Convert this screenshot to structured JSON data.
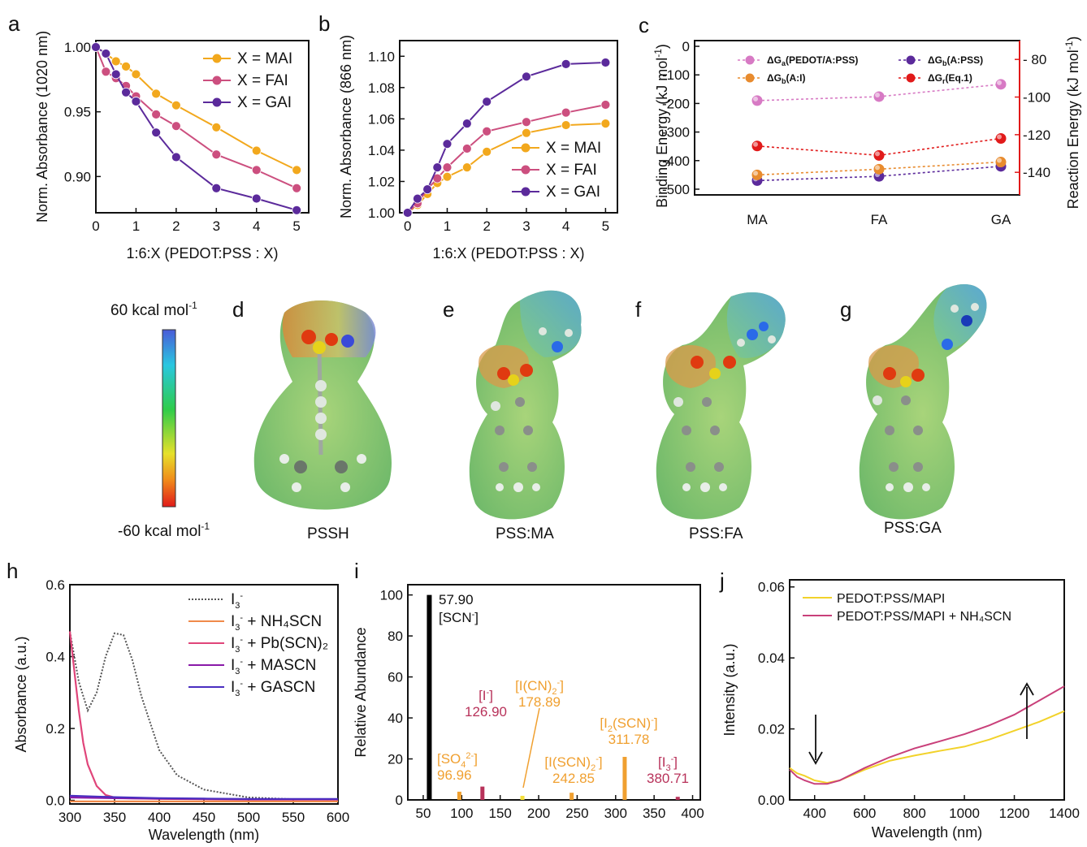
{
  "colors": {
    "mai": "#f2a81d",
    "fai": "#cc4f7f",
    "gai": "#5b2a9b",
    "red": "#e11a1a",
    "orange": "#f0a030",
    "crimson": "#b8325a"
  },
  "panels": {
    "a": "a",
    "b": "b",
    "c": "c",
    "d": "d",
    "e": "e",
    "f": "f",
    "g": "g",
    "h": "h",
    "i": "i",
    "j": "j"
  },
  "colorbar": {
    "top": "60 kcal mol",
    "bottom": "-60 kcal mol",
    "sup": "-1"
  },
  "molecules": [
    "PSSH",
    "PSS:MA",
    "PSS:FA",
    "PSS:GA"
  ],
  "chart_data": [
    {
      "id": "a",
      "type": "line",
      "xlabel": "1:6:X (PEDOT:PSS : X)",
      "ylabel": "Norm. Absorbance (1020 nm)",
      "xlim": [
        0,
        5.3
      ],
      "ylim": [
        0.872,
        1.005
      ],
      "xticks": [
        0,
        1,
        2,
        3,
        4,
        5
      ],
      "xticklabels": [
        "0",
        "1",
        "2",
        "3",
        "4",
        "5"
      ],
      "yticks": [
        0.9,
        0.95,
        1.0
      ],
      "yticklabels": [
        "0.90",
        "0.95",
        "1.00"
      ],
      "legend_position": "top-right",
      "series": [
        {
          "name": "X = MAI",
          "color": "#f2a81d",
          "x": [
            0,
            0.25,
            0.5,
            0.75,
            1,
            1.5,
            2,
            3,
            4,
            5
          ],
          "y": [
            1.0,
            0.995,
            0.989,
            0.985,
            0.979,
            0.964,
            0.955,
            0.938,
            0.92,
            0.905
          ]
        },
        {
          "name": "X = FAI",
          "color": "#cc4f7f",
          "x": [
            0,
            0.25,
            0.5,
            0.75,
            1,
            1.5,
            2,
            3,
            4,
            5
          ],
          "y": [
            1.0,
            0.981,
            0.976,
            0.97,
            0.962,
            0.948,
            0.939,
            0.917,
            0.905,
            0.891
          ]
        },
        {
          "name": "X = GAI",
          "color": "#5b2a9b",
          "x": [
            0,
            0.25,
            0.5,
            0.75,
            1,
            1.5,
            2,
            3,
            4,
            5
          ],
          "y": [
            1.0,
            0.995,
            0.979,
            0.965,
            0.958,
            0.934,
            0.915,
            0.891,
            0.883,
            0.874
          ]
        }
      ]
    },
    {
      "id": "b",
      "type": "line",
      "xlabel": "1:6:X (PEDOT:PSS : X)",
      "ylabel": "Norm. Absorbance (866 nm)",
      "xlim": [
        -0.2,
        5.3
      ],
      "ylim": [
        1.0,
        1.11
      ],
      "xticks": [
        0,
        1,
        2,
        3,
        4,
        5
      ],
      "xticklabels": [
        "0",
        "1",
        "2",
        "3",
        "4",
        "5"
      ],
      "yticks": [
        1.0,
        1.02,
        1.04,
        1.06,
        1.08,
        1.1
      ],
      "yticklabels": [
        "1.00",
        "1.02",
        "1.04",
        "1.06",
        "1.08",
        "1.10"
      ],
      "legend_position": "bottom-right",
      "series": [
        {
          "name": "X = MAI",
          "color": "#f2a81d",
          "x": [
            0,
            0.25,
            0.5,
            0.75,
            1,
            1.5,
            2,
            3,
            4,
            5
          ],
          "y": [
            1.0,
            1.005,
            1.012,
            1.019,
            1.023,
            1.029,
            1.039,
            1.051,
            1.056,
            1.057
          ]
        },
        {
          "name": "X = FAI",
          "color": "#cc4f7f",
          "x": [
            0,
            0.25,
            0.5,
            0.75,
            1,
            1.5,
            2,
            3,
            4,
            5
          ],
          "y": [
            1.0,
            1.006,
            1.015,
            1.022,
            1.029,
            1.041,
            1.052,
            1.058,
            1.064,
            1.069
          ]
        },
        {
          "name": "X = GAI",
          "color": "#5b2a9b",
          "x": [
            0,
            0.25,
            0.5,
            0.75,
            1,
            1.5,
            2,
            3,
            4,
            5
          ],
          "y": [
            1.0,
            1.009,
            1.015,
            1.029,
            1.044,
            1.057,
            1.071,
            1.087,
            1.095,
            1.096
          ]
        }
      ]
    },
    {
      "id": "c",
      "type": "scatter",
      "categories": [
        "MA",
        "FA",
        "GA"
      ],
      "ylabel": "Binding Energy (kJ mol",
      "ylabel_sup": "-1",
      "ylabel_end": ")",
      "y2label": "Reaction Energy (kJ mol",
      "y2label_sup": "-1",
      "y2label_end": ")",
      "ylim": [
        -520,
        20
      ],
      "y2lim": [
        -152,
        -70
      ],
      "yticks": [
        0,
        -100,
        -200,
        -300,
        -400,
        -500
      ],
      "yticklabels": [
        "0",
        "-100",
        "-200",
        "-300",
        "-400",
        "-500"
      ],
      "y2ticks": [
        -80,
        -100,
        -120,
        -140
      ],
      "y2ticklabels": [
        "- 80",
        "-100",
        "-120",
        "-140"
      ],
      "legend_position": "top",
      "series": [
        {
          "name": "ΔG",
          "sub": "a",
          "tail": "(PEDOT/A:PSS)",
          "color": "#d77ac4",
          "axis": "left",
          "values": [
            -190,
            -176,
            -133
          ]
        },
        {
          "name": "ΔG",
          "sub": "b",
          "tail": "(A:PSS)",
          "color": "#5b2a9b",
          "axis": "left",
          "values": [
            -470,
            -455,
            -420
          ]
        },
        {
          "name": "ΔG",
          "sub": "b",
          "tail": "(A:I)",
          "color": "#e88b2e",
          "axis": "left",
          "values": [
            -450,
            -430,
            -405
          ]
        },
        {
          "name": "ΔG",
          "sub": "r",
          "tail": "(Eq.1)",
          "color": "#e11a1a",
          "axis": "right",
          "values": [
            -126,
            -131,
            -122
          ]
        }
      ]
    },
    {
      "id": "h",
      "type": "line",
      "xlabel": "Wavelength (nm)",
      "ylabel": "Absorbance (a.u.)",
      "xlim": [
        300,
        600
      ],
      "ylim": [
        -0.01,
        0.6
      ],
      "xticks": [
        300,
        350,
        400,
        450,
        500,
        550,
        600
      ],
      "xticklabels": [
        "300",
        "350",
        "400",
        "450",
        "500",
        "550",
        "600"
      ],
      "yticks": [
        0.0,
        0.2,
        0.4,
        0.6
      ],
      "yticklabels": [
        "0.0",
        "0.2",
        "0.4",
        "0.6"
      ],
      "legend_position": "top-right",
      "series": [
        {
          "name": "I3- ",
          "legend": [
            "I",
            "3",
            "-",
            ""
          ],
          "color": "#555555",
          "dash": true,
          "x": [
            300,
            310,
            320,
            330,
            340,
            350,
            360,
            370,
            380,
            400,
            420,
            450,
            500,
            550,
            600
          ],
          "y": [
            0.47,
            0.33,
            0.25,
            0.3,
            0.4,
            0.465,
            0.46,
            0.39,
            0.29,
            0.14,
            0.07,
            0.03,
            0.008,
            0.003,
            0.002
          ]
        },
        {
          "name": "I3- + NH4SCN",
          "legend": [
            "I",
            "3",
            "-",
            " + NH₄SCN"
          ],
          "color": "#f08a4a",
          "x": [
            300,
            350,
            400,
            450,
            500,
            550,
            600
          ],
          "y": [
            -0.003,
            -0.003,
            -0.003,
            -0.003,
            -0.003,
            -0.003,
            -0.003
          ]
        },
        {
          "name": "I3- + Pb(SCN)2",
          "legend": [
            "I",
            "3",
            "-",
            " + Pb(SCN)₂"
          ],
          "color": "#e0457a",
          "x": [
            300,
            305,
            310,
            315,
            320,
            330,
            340,
            350,
            360,
            400,
            450,
            500,
            600
          ],
          "y": [
            0.47,
            0.36,
            0.25,
            0.16,
            0.1,
            0.04,
            0.015,
            0.008,
            0.006,
            0.004,
            0.003,
            0.002,
            0.002
          ]
        },
        {
          "name": "I3- + MASCN",
          "legend": [
            "I",
            "3",
            "-",
            " + MASCN"
          ],
          "color": "#8a1aa8",
          "x": [
            300,
            350,
            400,
            450,
            500,
            550,
            600
          ],
          "y": [
            0.008,
            0.006,
            0.005,
            0.004,
            0.003,
            0.003,
            0.003
          ]
        },
        {
          "name": "I3- + GASCN",
          "legend": [
            "I",
            "3",
            "-",
            " + GASCN"
          ],
          "color": "#4a2ec0",
          "x": [
            300,
            350,
            400,
            450,
            500,
            550,
            600
          ],
          "y": [
            0.013,
            0.009,
            0.006,
            0.005,
            0.004,
            0.004,
            0.004
          ]
        }
      ]
    },
    {
      "id": "i",
      "type": "bar",
      "xlabel": "",
      "ylabel": "Relative Abundance",
      "xlim": [
        30,
        410
      ],
      "ylim": [
        0,
        105
      ],
      "xticks": [
        50,
        100,
        150,
        200,
        250,
        300,
        350,
        400
      ],
      "xticklabels": [
        "50",
        "100",
        "150",
        "200",
        "250",
        "300",
        "350",
        "400"
      ],
      "yticks": [
        0,
        20,
        40,
        60,
        80,
        100
      ],
      "yticklabels": [
        "0",
        "20",
        "40",
        "60",
        "80",
        "100"
      ],
      "bars": [
        {
          "x": 57.9,
          "y": 100,
          "color": "#000000"
        },
        {
          "x": 96.96,
          "y": 4,
          "color": "#f0a030"
        },
        {
          "x": 126.9,
          "y": 6.5,
          "color": "#b8325a"
        },
        {
          "x": 178.89,
          "y": 2,
          "color": "#f5e03a"
        },
        {
          "x": 242.85,
          "y": 3.5,
          "color": "#f0a030"
        },
        {
          "x": 311.78,
          "y": 21,
          "color": "#f0a030"
        },
        {
          "x": 380.71,
          "y": 1.5,
          "color": "#b8325a"
        }
      ],
      "annotations": [
        {
          "ion": "[SCN",
          "sup": "-",
          "tail": "]",
          "mass": "57.90",
          "color": "#111111"
        },
        {
          "ion": "[SO",
          "sub": "4",
          "sup": "2-",
          "tail": "]",
          "mass": "96.96",
          "color": "#f0a030"
        },
        {
          "ion": "[I",
          "sup": "-",
          "tail": "]",
          "mass": "126.90",
          "color": "#b8325a"
        },
        {
          "ion": "[I(CN)",
          "sub": "2",
          "sup": "-",
          "tail": "]",
          "mass": "178.89",
          "color": "#f0a030"
        },
        {
          "ion": "[I(SCN)",
          "sub": "2",
          "sup": "-",
          "tail": "]",
          "mass": "242.85",
          "color": "#f0a030"
        },
        {
          "ion": "[I",
          "sub": "2",
          "mid": "(SCN)",
          "sup": "-",
          "tail": "]",
          "mass": "311.78",
          "color": "#f0a030"
        },
        {
          "ion": "[I",
          "sub": "3",
          "sup": "-",
          "tail": "]",
          "mass": "380.71",
          "color": "#b8325a"
        }
      ]
    },
    {
      "id": "j",
      "type": "line",
      "xlabel": "Wavelength (nm)",
      "ylabel": "Intensity (a.u.)",
      "xlim": [
        300,
        1400
      ],
      "ylim": [
        0,
        0.062
      ],
      "xticks": [
        400,
        600,
        800,
        1000,
        1200,
        1400
      ],
      "xticklabels": [
        "400",
        "600",
        "800",
        "1000",
        "1200",
        "1400"
      ],
      "yticks": [
        0.0,
        0.02,
        0.04,
        0.06
      ],
      "yticklabels": [
        "0.00",
        "0.02",
        "0.04",
        "0.06"
      ],
      "legend_position": "top-left",
      "series": [
        {
          "name": "PEDOT:PSS/MAPI",
          "color": "#f2d22a",
          "x": [
            300,
            330,
            360,
            400,
            450,
            500,
            600,
            700,
            800,
            900,
            1000,
            1100,
            1200,
            1300,
            1400
          ],
          "y": [
            0.009,
            0.0075,
            0.0068,
            0.0055,
            0.0048,
            0.0055,
            0.0085,
            0.011,
            0.0125,
            0.0138,
            0.015,
            0.017,
            0.0195,
            0.022,
            0.025
          ]
        },
        {
          "name": "PEDOT:PSS/MAPI + NH₄SCN",
          "color": "#c9407a",
          "x": [
            300,
            330,
            360,
            400,
            450,
            500,
            600,
            700,
            800,
            900,
            1000,
            1100,
            1200,
            1300,
            1400
          ],
          "y": [
            0.0085,
            0.0065,
            0.0055,
            0.0045,
            0.0045,
            0.0055,
            0.009,
            0.012,
            0.0145,
            0.0165,
            0.0185,
            0.021,
            0.024,
            0.028,
            0.032
          ]
        }
      ]
    }
  ]
}
